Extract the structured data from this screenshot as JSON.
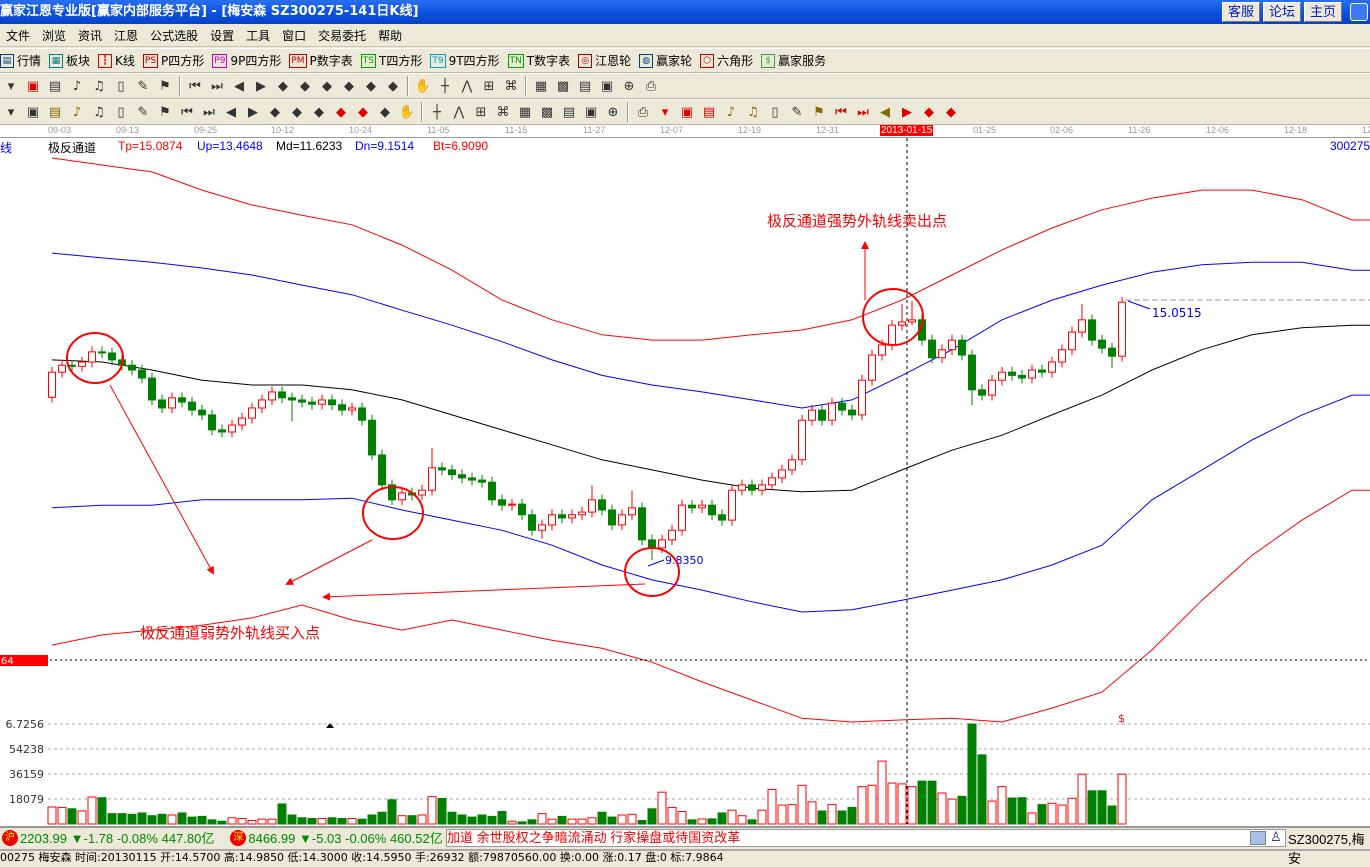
{
  "window": {
    "title": "赢家江恩专业版[赢家内部服务平台] - [梅安森   SZ300275-141日K线]",
    "buttons": [
      "客服",
      "论坛",
      "主页"
    ]
  },
  "menu": [
    "文件",
    "浏览",
    "资讯",
    "江恩",
    "公式选股",
    "设置",
    "工具",
    "窗口",
    "交易委托",
    "帮助"
  ],
  "toolbar1": [
    {
      "icon": "quote-icon",
      "glyph": "▤",
      "label": "行情",
      "color": "#004080"
    },
    {
      "icon": "sector-icon",
      "glyph": "▦",
      "label": "板块",
      "color": "#008080"
    },
    {
      "icon": "kline-icon",
      "glyph": "┇",
      "label": "K线",
      "color": "#e00000"
    },
    {
      "icon": "ps-icon",
      "glyph": "PS",
      "label": "P四方形",
      "color": "#c00000"
    },
    {
      "icon": "p9-icon",
      "glyph": "P9",
      "label": "9P四方形",
      "color": "#c000c0"
    },
    {
      "icon": "pm-icon",
      "glyph": "PM",
      "label": "P数字表",
      "color": "#c00000"
    },
    {
      "icon": "ts-icon",
      "glyph": "TS",
      "label": "T四方形",
      "color": "#00a000"
    },
    {
      "icon": "t9-icon",
      "glyph": "T9",
      "label": "9T四方形",
      "color": "#00a0c0"
    },
    {
      "icon": "tn-icon",
      "glyph": "TN",
      "label": "T数字表",
      "color": "#00a000"
    },
    {
      "icon": "gann-wheel-icon",
      "glyph": "◎",
      "label": "江恩轮",
      "color": "#a00000"
    },
    {
      "icon": "winner-wheel-icon",
      "glyph": "◍",
      "label": "赢家轮",
      "color": "#004080"
    },
    {
      "icon": "hexagon-icon",
      "glyph": "⬡",
      "label": "六角形",
      "color": "#c00000"
    },
    {
      "icon": "dollar-icon",
      "glyph": "$",
      "label": "赢家服务",
      "color": "#40a040"
    }
  ],
  "toolbar2": [
    "dropdown-icon",
    "window-icon",
    "notes-icon",
    "wave3-icon",
    "wave9-icon",
    "candle-type-icon",
    "draw-icon",
    "chart-flag-icon",
    "first-icon",
    "last-icon",
    "prev-icon",
    "next-icon",
    "left-icon",
    "right-icon",
    "expand-icon",
    "shrink-icon",
    "zoom-in-icon",
    "zoom-out-icon",
    "hand-icon",
    "crosshair-icon",
    "line-tool-icon",
    "grid-icon",
    "pattern-icon",
    "calendar-icon",
    "calculator-icon",
    "document-icon",
    "save-icon",
    "network-icon",
    "print-icon"
  ],
  "toolbar3": [
    "ruler-icon",
    "parallel-icon",
    "gold-icon",
    "gold2-icon",
    "fib-icon",
    "spiral-icon",
    "pen-icon",
    "circle-icon",
    "lines-icon",
    "n2-icon",
    "triangle-icon",
    "target-icon",
    "web-icon",
    "square-icon",
    "wave-icon",
    "god-icon",
    "win-icon",
    "grid-tool-icon",
    "width-icon",
    "box-icon",
    "fan-icon",
    "box-fan-icon",
    "box-fan2-icon",
    "angle-icon",
    "vv-icon",
    "grid-a-icon",
    "grid-b-icon",
    "slash-icon",
    "table-icon",
    "percent-fan-icon",
    "percent-icon",
    "percent-line-icon",
    "gold-circle-icon",
    "gold-line-icon",
    "pen2-icon",
    "sine-icon",
    "gold3-icon",
    "j-icon",
    "f-icon",
    "gold-fan-icon",
    "god-fan-icon",
    "win-fan-icon",
    "four-fan-icon"
  ],
  "dateaxis": {
    "ticks": [
      "09-03",
      "09-13",
      "09-25",
      "10-12",
      "10-24",
      "11-05",
      "11-15",
      "11-27",
      "12-07",
      "12-19",
      "12-31",
      "01-25",
      "02-06",
      "11-26",
      "12-06",
      "12-18",
      "12"
    ],
    "cursor": "2013-01-15"
  },
  "legend": {
    "side_label": "线",
    "name": "极反通道",
    "tp": "Tp=15.0874",
    "up": "Up=13.4648",
    "md": "Md=11.6233",
    "dn": "Dn=9.1514",
    "bt": "Bt=6.9090",
    "code": "300275"
  },
  "annotations": {
    "sell_text": "极反通道强势外轨线卖出点",
    "buy_text": "极反通道弱势外轨线买入点",
    "high_label": "15.0515",
    "low_label": "9.8350",
    "price_marker": "64",
    "dollar": "$"
  },
  "volume_axis": [
    "6.7256",
    "54238",
    "36159",
    "18079"
  ],
  "colors": {
    "up": "#ff0000",
    "down": "#008000",
    "upper_outer": "#ff0000",
    "upper": "#0000ff",
    "mid": "#000000",
    "lower": "#0000ff",
    "lower_outer": "#ff0000"
  },
  "status": {
    "sh": {
      "badge": "沪",
      "value": "2203.99",
      "arrow": "▼",
      "change": "-1.78",
      "pct": "-0.08%",
      "amount": "447.80亿"
    },
    "sz": {
      "badge": "深",
      "value": "8466.99",
      "arrow": "▼",
      "change": "-5.03",
      "pct": "-0.06%",
      "amount": "460.52亿"
    },
    "ticker": "加道      余世股权之争暗流涌动  行家操盘或待国资改革",
    "stock": "SZ300275,梅安",
    "info": "00275 梅安森 时间:20130115 开:14.5700 高:14.9850 低:14.3000 收:14.5950 手:26932 额:79870560.00 换:0.00 涨:0.17 盘:0 标:7.9864"
  },
  "chart_data": {
    "type": "candlestick",
    "ylim": [
      6.87,
      17.58
    ],
    "candles": [
      [
        12.95,
        13.52,
        12.85,
        13.42
      ],
      [
        13.42,
        13.65,
        13.32,
        13.55
      ],
      [
        13.55,
        13.65,
        13.43,
        13.53
      ],
      [
        13.53,
        13.71,
        13.43,
        13.61
      ],
      [
        13.61,
        13.9,
        13.51,
        13.8
      ],
      [
        13.8,
        13.9,
        13.68,
        13.78
      ],
      [
        13.78,
        13.88,
        13.55,
        13.65
      ],
      [
        13.65,
        13.75,
        13.45,
        13.55
      ],
      [
        13.55,
        13.65,
        13.36,
        13.46
      ],
      [
        13.46,
        13.56,
        13.21,
        13.31
      ],
      [
        13.31,
        13.41,
        12.8,
        12.9
      ],
      [
        12.9,
        13.0,
        12.65,
        12.75
      ],
      [
        12.75,
        13.04,
        12.65,
        12.94
      ],
      [
        12.94,
        13.04,
        12.76,
        12.86
      ],
      [
        12.86,
        12.96,
        12.61,
        12.71
      ],
      [
        12.71,
        12.81,
        12.52,
        12.62
      ],
      [
        12.62,
        12.72,
        12.24,
        12.34
      ],
      [
        12.34,
        12.44,
        12.2,
        12.3
      ],
      [
        12.3,
        12.53,
        12.2,
        12.43
      ],
      [
        12.43,
        12.66,
        12.33,
        12.56
      ],
      [
        12.56,
        12.85,
        12.46,
        12.75
      ],
      [
        12.75,
        13.0,
        12.65,
        12.9
      ],
      [
        12.9,
        13.15,
        12.8,
        13.05
      ],
      [
        13.05,
        13.15,
        12.84,
        12.94
      ],
      [
        12.94,
        13.04,
        12.5,
        12.9
      ],
      [
        12.9,
        13.0,
        12.76,
        12.86
      ],
      [
        12.86,
        12.96,
        12.72,
        12.82
      ],
      [
        12.82,
        13.0,
        12.72,
        12.9
      ],
      [
        12.9,
        13.0,
        12.71,
        12.81
      ],
      [
        12.81,
        12.91,
        12.61,
        12.71
      ],
      [
        12.71,
        12.85,
        12.61,
        12.75
      ],
      [
        12.75,
        12.85,
        12.42,
        12.52
      ],
      [
        12.52,
        12.62,
        11.77,
        11.87
      ],
      [
        11.87,
        11.97,
        11.21,
        11.31
      ],
      [
        11.31,
        11.41,
        10.93,
        11.03
      ],
      [
        11.03,
        11.26,
        10.93,
        11.16
      ],
      [
        11.16,
        11.26,
        11.02,
        11.12
      ],
      [
        11.12,
        11.31,
        11.02,
        11.21
      ],
      [
        11.21,
        12.0,
        11.11,
        11.63
      ],
      [
        11.63,
        11.73,
        11.49,
        11.59
      ],
      [
        11.59,
        11.69,
        11.4,
        11.5
      ],
      [
        11.5,
        11.6,
        11.34,
        11.44
      ],
      [
        11.44,
        11.54,
        11.3,
        11.4
      ],
      [
        11.4,
        11.5,
        11.26,
        11.36
      ],
      [
        11.36,
        11.46,
        10.93,
        11.03
      ],
      [
        11.03,
        11.13,
        10.83,
        10.93
      ],
      [
        10.93,
        11.05,
        10.83,
        10.95
      ],
      [
        10.95,
        11.05,
        10.65,
        10.75
      ],
      [
        10.75,
        10.85,
        10.36,
        10.46
      ],
      [
        10.46,
        10.66,
        10.3,
        10.56
      ],
      [
        10.56,
        10.85,
        10.46,
        10.75
      ],
      [
        10.75,
        10.85,
        10.59,
        10.69
      ],
      [
        10.69,
        10.85,
        10.59,
        10.75
      ],
      [
        10.75,
        10.9,
        10.65,
        10.8
      ],
      [
        10.8,
        11.3,
        10.7,
        11.03
      ],
      [
        11.03,
        11.13,
        10.74,
        10.84
      ],
      [
        10.84,
        10.94,
        10.46,
        10.56
      ],
      [
        10.56,
        10.85,
        10.46,
        10.75
      ],
      [
        10.75,
        11.2,
        10.65,
        10.88
      ],
      [
        10.88,
        10.98,
        10.18,
        10.28
      ],
      [
        10.28,
        10.38,
        9.9,
        10.13
      ],
      [
        10.13,
        10.38,
        10.03,
        10.28
      ],
      [
        10.28,
        10.56,
        10.18,
        10.46
      ],
      [
        10.46,
        11.03,
        10.36,
        10.93
      ],
      [
        10.93,
        11.03,
        10.78,
        10.88
      ],
      [
        10.88,
        11.03,
        10.78,
        10.93
      ],
      [
        10.93,
        11.03,
        10.65,
        10.75
      ],
      [
        10.75,
        10.85,
        10.55,
        10.65
      ],
      [
        10.65,
        11.31,
        10.55,
        11.21
      ],
      [
        11.21,
        11.41,
        11.11,
        11.31
      ],
      [
        11.31,
        11.41,
        11.11,
        11.21
      ],
      [
        11.21,
        11.41,
        11.11,
        11.31
      ],
      [
        11.31,
        11.54,
        11.21,
        11.44
      ],
      [
        11.44,
        11.69,
        11.34,
        11.59
      ],
      [
        11.59,
        11.88,
        11.49,
        11.78
      ],
      [
        11.78,
        12.62,
        11.68,
        12.52
      ],
      [
        12.52,
        12.81,
        12.42,
        12.71
      ],
      [
        12.71,
        12.81,
        12.42,
        12.52
      ],
      [
        12.52,
        12.94,
        12.42,
        12.84
      ],
      [
        12.84,
        12.94,
        12.61,
        12.71
      ],
      [
        12.71,
        12.81,
        12.52,
        12.62
      ],
      [
        12.62,
        13.37,
        12.52,
        13.27
      ],
      [
        13.27,
        13.84,
        13.17,
        13.74
      ],
      [
        13.74,
        14.03,
        13.64,
        13.93
      ],
      [
        13.93,
        14.4,
        13.83,
        14.3
      ],
      [
        14.3,
        14.7,
        14.2,
        14.36
      ],
      [
        14.36,
        14.75,
        14.3,
        14.4
      ],
      [
        14.4,
        14.5,
        13.92,
        14.02
      ],
      [
        14.02,
        14.12,
        13.59,
        13.69
      ],
      [
        13.69,
        13.94,
        13.59,
        13.84
      ],
      [
        13.84,
        14.12,
        13.74,
        14.02
      ],
      [
        14.02,
        14.12,
        13.64,
        13.74
      ],
      [
        13.74,
        13.84,
        12.8,
        13.09
      ],
      [
        13.09,
        13.19,
        12.89,
        12.99
      ],
      [
        12.99,
        13.37,
        12.89,
        13.27
      ],
      [
        13.27,
        13.52,
        13.17,
        13.42
      ],
      [
        13.42,
        13.52,
        13.26,
        13.36
      ],
      [
        13.36,
        13.46,
        13.21,
        13.31
      ],
      [
        13.31,
        13.56,
        13.21,
        13.46
      ],
      [
        13.46,
        13.56,
        13.32,
        13.42
      ],
      [
        13.42,
        13.71,
        13.32,
        13.61
      ],
      [
        13.61,
        13.94,
        13.51,
        13.84
      ],
      [
        13.84,
        14.27,
        13.74,
        14.17
      ],
      [
        14.17,
        14.7,
        14.07,
        14.4
      ],
      [
        14.4,
        14.5,
        13.92,
        14.02
      ],
      [
        14.02,
        14.12,
        13.77,
        13.87
      ],
      [
        13.87,
        13.97,
        13.5,
        13.72
      ],
      [
        13.72,
        14.83,
        13.62,
        14.73
      ]
    ],
    "volume": [
      12300,
      12000,
      11000,
      9500,
      19500,
      19000,
      7500,
      7500,
      7000,
      8000,
      6000,
      7000,
      6500,
      8000,
      5000,
      5500,
      3000,
      2000,
      4500,
      4000,
      2500,
      3500,
      3500,
      14500,
      6500,
      4500,
      4000,
      4000,
      4500,
      4000,
      4000,
      3500,
      6500,
      8500,
      17500,
      6000,
      6000,
      6500,
      19800,
      18500,
      8500,
      6500,
      5000,
      6500,
      5500,
      9000,
      2000,
      1500,
      3000,
      7500,
      3500,
      5500,
      3500,
      3500,
      4500,
      8500,
      5000,
      6500,
      7000,
      2500,
      11000,
      23000,
      12000,
      9000,
      3000,
      3600,
      3700,
      8000,
      10000,
      6000,
      3000,
      10000,
      25000,
      13700,
      14000,
      28000,
      16000,
      9400,
      14000,
      9400,
      12000,
      27000,
      28000,
      45500,
      29600,
      29000,
      27000,
      31000,
      31000,
      22400,
      18000,
      20000,
      72300,
      50000,
      16600,
      27000,
      18800,
      19000,
      8000,
      14000,
      15000,
      13700,
      18600,
      36000,
      24000,
      24000,
      13000,
      36000
    ],
    "volume_ylim": [
      0,
      72318
    ],
    "band_step": 5,
    "bands": {
      "Tp": [
        17.43,
        17.3,
        17.17,
        16.83,
        16.55,
        16.36,
        16.18,
        15.8,
        15.33,
        14.77,
        14.4,
        14.12,
        14.02,
        14.02,
        14.12,
        14.21,
        14.4,
        14.77,
        15.24,
        15.71,
        16.12,
        16.46,
        16.68,
        16.83,
        16.83,
        16.65,
        16.27
      ],
      "Up": [
        15.65,
        15.56,
        15.48,
        15.37,
        15.24,
        15.05,
        14.87,
        14.58,
        14.3,
        13.99,
        13.65,
        13.36,
        13.18,
        13.05,
        12.9,
        12.75,
        12.9,
        13.36,
        13.84,
        14.4,
        14.77,
        15.05,
        15.29,
        15.43,
        15.48,
        15.48,
        15.33
      ],
      "Md": [
        13.65,
        13.61,
        13.46,
        13.27,
        13.18,
        13.18,
        13.09,
        12.9,
        12.62,
        12.34,
        12.06,
        11.78,
        11.59,
        11.4,
        11.25,
        11.18,
        11.21,
        11.59,
        11.96,
        12.24,
        12.62,
        12.99,
        13.46,
        13.84,
        14.12,
        14.25,
        14.3
      ],
      "Dn": [
        10.88,
        10.93,
        10.93,
        11.03,
        11.03,
        11.03,
        11.06,
        10.84,
        10.65,
        10.46,
        10.18,
        9.81,
        9.53,
        9.34,
        9.12,
        8.93,
        8.97,
        9.15,
        9.34,
        9.53,
        9.81,
        10.18,
        11.03,
        11.59,
        12.15,
        12.62,
        12.99
      ],
      "Bt": [
        8.31,
        8.5,
        8.59,
        8.68,
        8.82,
        9.06,
        8.78,
        8.59,
        8.78,
        8.59,
        8.4,
        8.25,
        7.99,
        7.62,
        7.28,
        6.94,
        6.87,
        6.91,
        6.94,
        6.87,
        7.13,
        7.43,
        8.22,
        9.15,
        9.99,
        10.65,
        11.21
      ]
    }
  }
}
